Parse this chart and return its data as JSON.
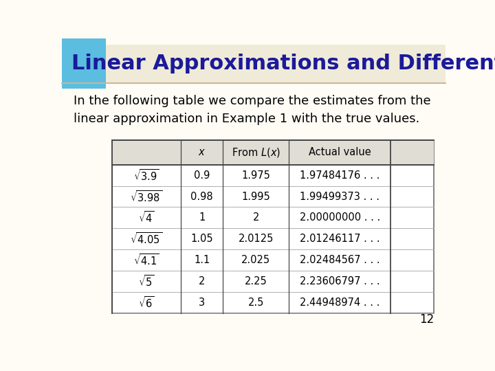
{
  "title": "Linear Approximations and Differentials",
  "subtitle": "In the following table we compare the estimates from the\nlinear approximation in Example 1 with the true values.",
  "col_headers": [
    "",
    "x",
    "From L(x)",
    "Actual value"
  ],
  "rows": [
    [
      "0.9",
      "1.975",
      "1.97484176 . . ."
    ],
    [
      "0.98",
      "1.995",
      "1.99499373 . . ."
    ],
    [
      "1",
      "2",
      "2.00000000 . . ."
    ],
    [
      "1.05",
      "2.0125",
      "2.01246117 . . ."
    ],
    [
      "1.1",
      "2.025",
      "2.02484567 . . ."
    ],
    [
      "2",
      "2.25",
      "2.23606797 . . ."
    ],
    [
      "3",
      "2.5",
      "2.44948974 . . ."
    ]
  ],
  "row_latex": [
    "$\\sqrt{3.9}$",
    "$\\sqrt{3.98}$",
    "$\\sqrt{4}$",
    "$\\sqrt{4.05}$",
    "$\\sqrt{4.1}$",
    "$\\sqrt{5}$",
    "$\\sqrt{6}$"
  ],
  "header_latex": [
    "",
    "$x$",
    "From $L(x)$",
    "Actual value"
  ],
  "page_num": "12",
  "banner_color": "#f0ead8",
  "sq_color": "#5bbde0",
  "title_color": "#1a1a9a",
  "table_border_color": "#777777",
  "header_row_bg": "#e0ddd5",
  "slide_bg": "#fefcf5",
  "separator_color": "#c8b89a"
}
